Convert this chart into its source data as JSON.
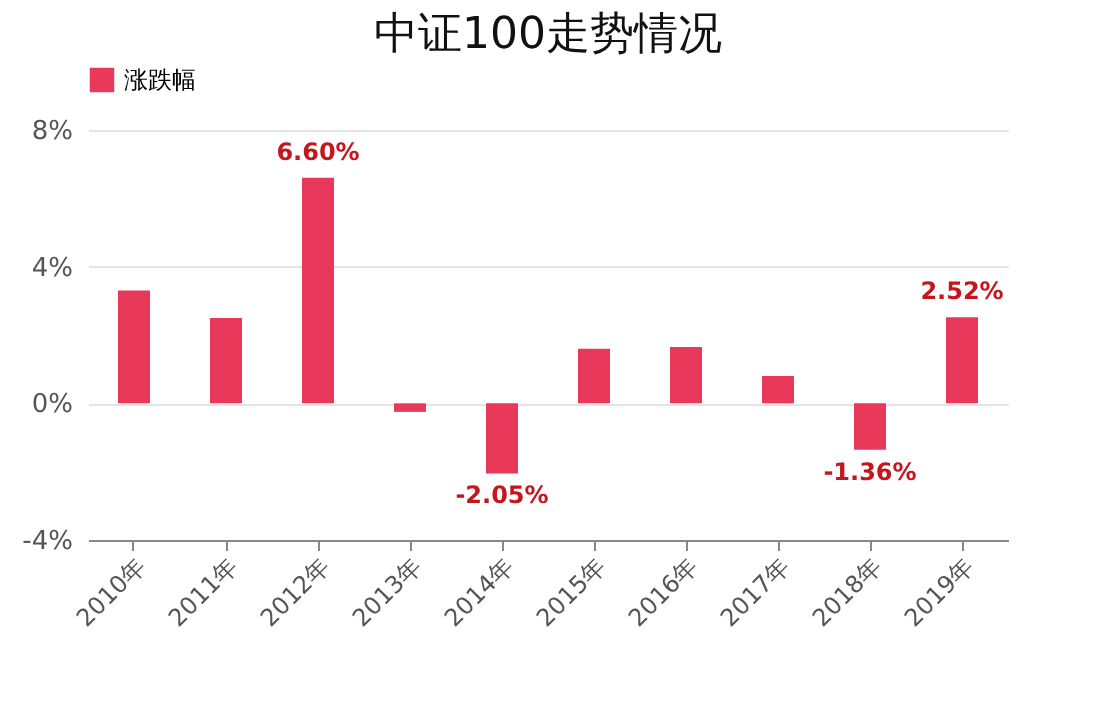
{
  "chart_data": {
    "type": "bar",
    "title": "中证100走势情况",
    "categories": [
      "2010年",
      "2011年",
      "2012年",
      "2013年",
      "2014年",
      "2015年",
      "2016年",
      "2017年",
      "2018年",
      "2019年"
    ],
    "series": [
      {
        "name": "涨跌幅",
        "color": "#e8395a",
        "values": [
          3.3,
          2.5,
          6.6,
          -0.25,
          -2.05,
          1.6,
          1.65,
          0.8,
          -1.36,
          2.52
        ],
        "value_labels": [
          null,
          null,
          "6.60%",
          null,
          "-2.05%",
          null,
          null,
          null,
          "-1.36%",
          "2.52%"
        ]
      }
    ],
    "ylim": [
      -4,
      8
    ],
    "yticks": [
      {
        "value": -4,
        "label": "-4%"
      },
      {
        "value": 0,
        "label": "0%"
      },
      {
        "value": 4,
        "label": "4%"
      },
      {
        "value": 8,
        "label": "8%"
      }
    ],
    "grid": "y",
    "legend": "top"
  }
}
